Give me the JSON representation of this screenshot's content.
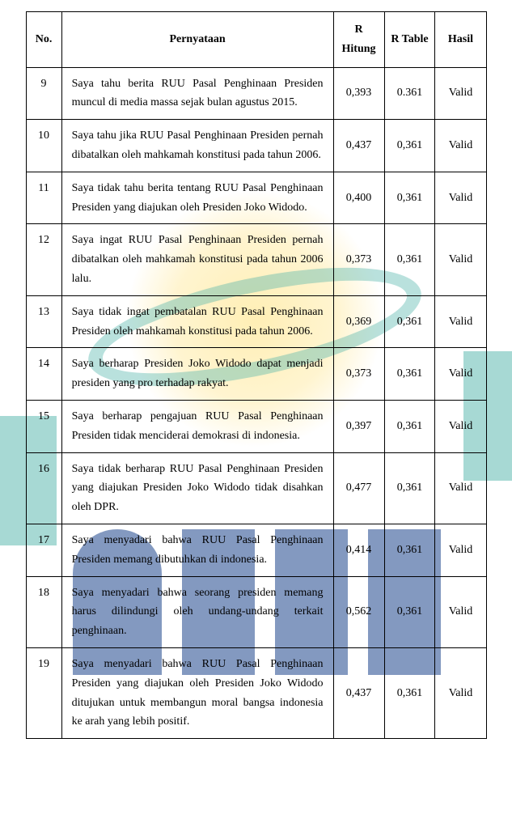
{
  "headers": {
    "no": "No.",
    "pernyataan": "Pernyataan",
    "r_hitung": "R Hitung",
    "r_table": "R Table",
    "hasil": "Hasil"
  },
  "rows": [
    {
      "no": "9",
      "text": "Saya tahu berita RUU Pasal Penghinaan Presiden muncul di media massa sejak bulan agustus 2015.",
      "r_hitung": "0,393",
      "r_table": "0.361",
      "hasil": "Valid"
    },
    {
      "no": "10",
      "text": "Saya tahu jika RUU Pasal Penghinaan Presiden pernah dibatalkan oleh mahkamah konstitusi pada tahun 2006.",
      "r_hitung": "0,437",
      "r_table": "0,361",
      "hasil": "Valid"
    },
    {
      "no": "11",
      "text": "Saya tidak tahu berita tentang RUU Pasal Penghinaan Presiden yang diajukan oleh Presiden Joko Widodo.",
      "r_hitung": "0,400",
      "r_table": "0,361",
      "hasil": "Valid"
    },
    {
      "no": "12",
      "text": "Saya ingat RUU Pasal Penghinaan Presiden pernah dibatalkan oleh mahkamah konstitusi pada tahun 2006 lalu.",
      "r_hitung": "0,373",
      "r_table": "0,361",
      "hasil": "Valid"
    },
    {
      "no": "13",
      "text": "Saya tidak ingat pembatalan RUU Pasal Penghinaan Presiden oleh mahkamah konstitusi pada tahun 2006.",
      "r_hitung": "0,369",
      "r_table": "0,361",
      "hasil": "Valid"
    },
    {
      "no": "14",
      "text": "Saya berharap Presiden Joko Widodo dapat menjadi presiden yang pro terhadap rakyat.",
      "r_hitung": "0,373",
      "r_table": "0,361",
      "hasil": "Valid"
    },
    {
      "no": "15",
      "text": "Saya berharap pengajuan RUU Pasal Penghinaan Presiden tidak menciderai demokrasi di indonesia.",
      "r_hitung": "0,397",
      "r_table": "0,361",
      "hasil": "Valid"
    },
    {
      "no": "16",
      "text": "Saya tidak berharap RUU Pasal Penghinaan Presiden yang diajukan Presiden Joko Widodo tidak disahkan oleh DPR.",
      "r_hitung": "0,477",
      "r_table": "0,361",
      "hasil": "Valid"
    },
    {
      "no": "17",
      "text": "Saya menyadari bahwa RUU Pasal Penghinaan Presiden memang dibutuhkan di indonesia.",
      "r_hitung": "0,414",
      "r_table": "0,361",
      "hasil": "Valid"
    },
    {
      "no": "18",
      "text": "Saya menyadari bahwa seorang presiden memang harus dilindungi oleh undang-undang terkait penghinaan.",
      "r_hitung": "0,562",
      "r_table": "0,361",
      "hasil": "Valid"
    },
    {
      "no": "19",
      "text": "Saya menyadari bahwa RUU Pasal Penghinaan Presiden yang diajukan oleh Presiden Joko Widodo ditujukan untuk membangun moral bangsa indonesia ke arah yang lebih positif.",
      "r_hitung": "0,437",
      "r_table": "0,361",
      "hasil": "Valid"
    }
  ]
}
